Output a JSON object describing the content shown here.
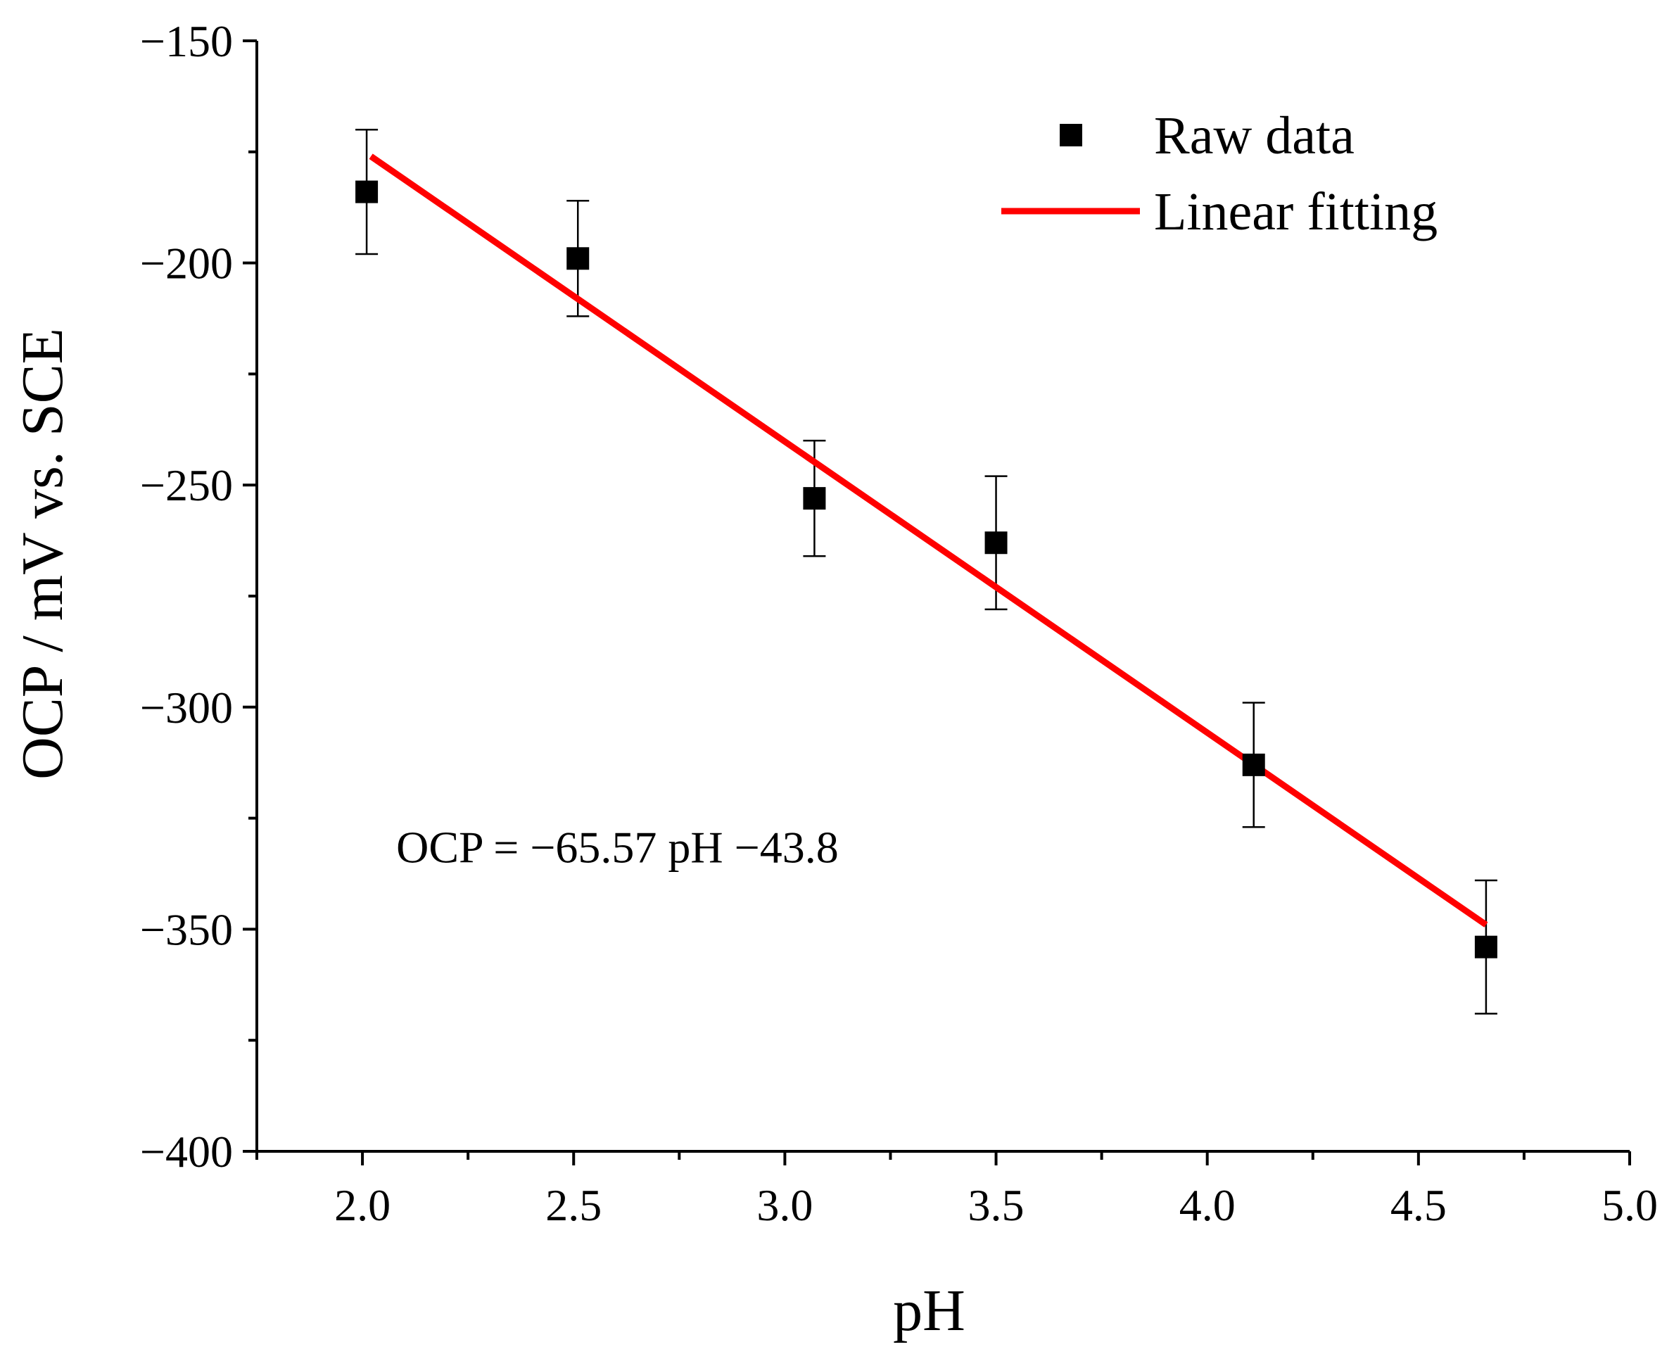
{
  "chart_data": {
    "type": "scatter",
    "title": "",
    "xlabel": "pH",
    "ylabel": "OCP / mV vs. SCE",
    "xlim": [
      1.75,
      5.0
    ],
    "ylim": [
      -400,
      -150
    ],
    "xticks": [
      2.0,
      2.5,
      3.0,
      3.5,
      4.0,
      4.5,
      5.0
    ],
    "xtick_labels": [
      "2.0",
      "2.5",
      "3.0",
      "3.5",
      "4.0",
      "4.5",
      "5.0"
    ],
    "xminor_ticks": [
      1.75,
      2.25,
      2.75,
      3.25,
      3.75,
      4.25,
      4.75
    ],
    "yticks": [
      -150,
      -200,
      -250,
      -300,
      -350,
      -400
    ],
    "ytick_labels": [
      "−150",
      "−200",
      "−250",
      "−300",
      "−350",
      "−400"
    ],
    "yminor_ticks": [
      -175,
      -225,
      -275,
      -325,
      -375
    ],
    "grid": false,
    "legend_position": "top-right",
    "series": [
      {
        "name": "Raw data",
        "kind": "scatter",
        "marker": "square",
        "color": "#000000",
        "x": [
          2.01,
          2.51,
          3.07,
          3.5,
          4.11,
          4.66
        ],
        "y": [
          -184,
          -199,
          -253,
          -263,
          -313,
          -354
        ],
        "yerr": [
          14,
          13,
          13,
          15,
          14,
          15
        ]
      },
      {
        "name": "Linear fitting",
        "kind": "line",
        "color": "#ff0000",
        "x": [
          2.02,
          4.66
        ],
        "y": [
          -176,
          -349
        ]
      }
    ],
    "annotations": [
      {
        "text": "OCP = −65.57 pH −43.8",
        "x": 2.08,
        "y": -335
      }
    ]
  }
}
